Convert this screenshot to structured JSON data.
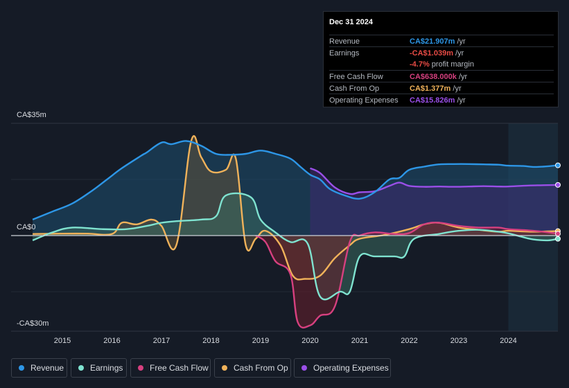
{
  "chart_data": {
    "type": "area",
    "y_unit": "CA$m",
    "ylim": [
      -30,
      35
    ],
    "y_ticks": [
      35,
      0,
      -30
    ],
    "y_tick_labels": [
      "CA$35m",
      "CA$0",
      "-CA$30m"
    ],
    "x_ticks": [
      2015,
      2016,
      2017,
      2018,
      2019,
      2020,
      2021,
      2022,
      2023,
      2024
    ],
    "x_tick_labels": [
      "2015",
      "2016",
      "2017",
      "2018",
      "2019",
      "2020",
      "2021",
      "2022",
      "2023",
      "2024"
    ],
    "highlight_from": 2024.0,
    "series": [
      {
        "name": "Revenue",
        "color": "#2d96e6",
        "fill": "#1e4f70",
        "x": [
          2014.4,
          2014.8,
          2015.2,
          2015.6,
          2015.9,
          2016.2,
          2016.6,
          2016.7,
          2017.0,
          2017.2,
          2017.5,
          2017.8,
          2018.1,
          2018.4,
          2018.7,
          2019.0,
          2019.3,
          2019.6,
          2019.8,
          2020.0,
          2020.2,
          2020.4,
          2020.7,
          2021.0,
          2021.3,
          2021.6,
          2021.8,
          2022.0,
          2022.3,
          2022.6,
          2022.9,
          2023.2,
          2023.5,
          2023.8,
          2024.0,
          2024.3,
          2024.5,
          2024.7,
          2025.0
        ],
        "values": [
          5,
          7.5,
          10,
          14,
          17.5,
          21,
          25,
          25.9,
          29,
          28.5,
          29.5,
          28,
          25.5,
          25.2,
          25.5,
          26.5,
          25.5,
          24,
          21.5,
          19,
          17.5,
          14.5,
          12.5,
          11.5,
          13.5,
          17.5,
          18,
          20.5,
          21.5,
          22.2,
          22.3,
          22.3,
          22.2,
          22.1,
          21.8,
          21.7,
          21.4,
          21.5,
          21.9
        ]
      },
      {
        "name": "Earnings",
        "color": "#7fe3d0",
        "fill": "#3a6a5e",
        "x": [
          2014.4,
          2014.8,
          2015.2,
          2015.8,
          2016.3,
          2016.7,
          2017.0,
          2017.3,
          2017.8,
          2018.1,
          2018.3,
          2018.8,
          2019.0,
          2019.3,
          2019.6,
          2019.95,
          2020.2,
          2020.6,
          2020.8,
          2021.0,
          2021.3,
          2021.7,
          2021.9,
          2022.1,
          2022.6,
          2023.0,
          2023.4,
          2023.8,
          2024.0,
          2024.3,
          2024.5,
          2024.8,
          2025.0
        ],
        "values": [
          -1.5,
          1,
          2.5,
          2,
          2,
          3,
          4,
          4.5,
          5,
          6,
          12.5,
          12,
          5,
          1,
          -2,
          -2.5,
          -19,
          -17.5,
          -17.5,
          -6.5,
          -6.5,
          -6.5,
          -6.5,
          -1,
          0.5,
          1.5,
          1.8,
          1.2,
          0.7,
          -0.5,
          -1.2,
          -1.5,
          -1.0
        ]
      },
      {
        "name": "Free Cash Flow",
        "color": "#d6407f",
        "fill": "#6a1f2c",
        "x": [
          2018.9,
          2019.1,
          2019.3,
          2019.6,
          2019.75,
          2020.0,
          2020.2,
          2020.5,
          2020.8,
          2021.0,
          2021.3,
          2021.7,
          2022.0,
          2022.3,
          2022.6,
          2023.0,
          2023.4,
          2023.8,
          2024.0,
          2024.5,
          2025.0
        ],
        "values": [
          0,
          -2,
          -8,
          -12,
          -27,
          -28,
          -25,
          -22,
          -2,
          0,
          1,
          0.5,
          0.8,
          3.5,
          4,
          3,
          2.5,
          2.5,
          2,
          1.5,
          0.6
        ]
      },
      {
        "name": "Cash From Op",
        "color": "#f0b25a",
        "fill": "#5e523a",
        "x": [
          2014.4,
          2015.0,
          2015.5,
          2016.0,
          2016.2,
          2016.5,
          2016.8,
          2017.0,
          2017.3,
          2017.6,
          2017.8,
          2018.0,
          2018.3,
          2018.5,
          2018.7,
          2018.9,
          2019.1,
          2019.4,
          2019.65,
          2019.9,
          2020.2,
          2020.5,
          2020.8,
          2021.0,
          2021.5,
          2022.0,
          2022.3,
          2022.6,
          2023.0,
          2023.4,
          2023.8,
          2024.0,
          2024.5,
          2025.0
        ],
        "values": [
          0.5,
          0.6,
          0.6,
          0.5,
          4,
          3.5,
          5,
          3,
          -3,
          29.5,
          24.5,
          20,
          20.5,
          24,
          -3,
          -1,
          1.5,
          -3,
          -12.5,
          -13.5,
          -12.5,
          -7,
          -3,
          -1,
          0.2,
          2,
          3.5,
          4,
          2.5,
          1.8,
          1.2,
          1.5,
          1.2,
          1.4
        ]
      },
      {
        "name": "Operating Expenses",
        "color": "#9a4fe8",
        "fill": "#3e2a70",
        "x": [
          2020.0,
          2020.2,
          2020.5,
          2020.8,
          2021.0,
          2021.3,
          2021.6,
          2021.8,
          2022.0,
          2022.3,
          2022.6,
          2022.9,
          2023.2,
          2023.5,
          2023.8,
          2024.0,
          2024.4,
          2024.7,
          2025.0
        ],
        "values": [
          21,
          19.5,
          15,
          13,
          13.5,
          13.8,
          15.5,
          16.5,
          15.5,
          15.2,
          15.3,
          15.2,
          15.3,
          15.4,
          15.3,
          15.3,
          15.6,
          15.7,
          15.8
        ]
      }
    ]
  },
  "tooltip": {
    "date": "Dec 31 2024",
    "rows": [
      {
        "label": "Revenue",
        "value": "CA$21.907m",
        "unit": " /yr",
        "color": "#2d96e6"
      },
      {
        "label": "Earnings",
        "value": "-CA$1.039m",
        "unit": " /yr",
        "color": "#e84b45"
      },
      {
        "label": "",
        "value": "-4.7%",
        "unit": " profit margin",
        "color": "#e84b45"
      },
      {
        "label": "Free Cash Flow",
        "value": "CA$638.000k",
        "unit": " /yr",
        "color": "#d6407f"
      },
      {
        "label": "Cash From Op",
        "value": "CA$1.377m",
        "unit": " /yr",
        "color": "#f0b25a"
      },
      {
        "label": "Operating Expenses",
        "value": "CA$15.826m",
        "unit": " /yr",
        "color": "#9a4fe8"
      }
    ]
  },
  "legend": [
    {
      "label": "Revenue",
      "color": "#2d96e6"
    },
    {
      "label": "Earnings",
      "color": "#7fe3d0"
    },
    {
      "label": "Free Cash Flow",
      "color": "#d6407f"
    },
    {
      "label": "Cash From Op",
      "color": "#f0b25a"
    },
    {
      "label": "Operating Expenses",
      "color": "#9a4fe8"
    }
  ]
}
